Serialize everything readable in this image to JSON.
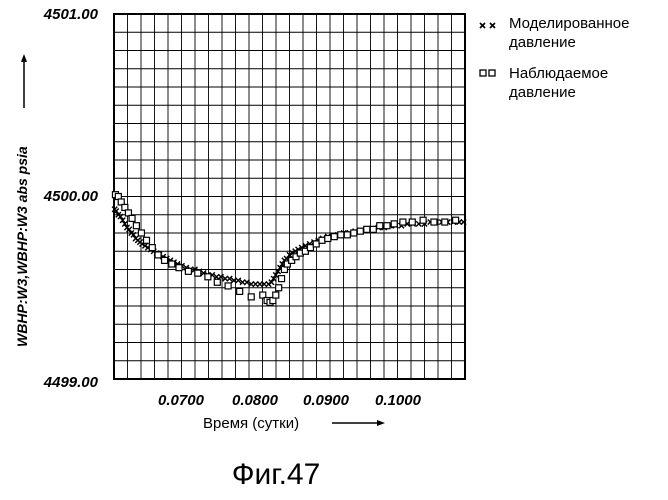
{
  "chart_data": {
    "type": "scatter",
    "ylabel": "WBHP:W3,WBHP:W3 abs psia",
    "xlabel": "Время (сутки)",
    "ylim": [
      4499.0,
      4501.0
    ],
    "xlim": [
      0.0612,
      0.1098
    ],
    "y_ticks": [
      "4499.00",
      "4500.00",
      "4501.00"
    ],
    "x_ticks": [
      "0.0700",
      "0.0800",
      "0.0900",
      "0.1000"
    ],
    "grid": true,
    "legend_position": "top-right, outside plot",
    "series": [
      {
        "name": "Моделированное давление",
        "marker": "x",
        "x": [
          0.0613,
          0.0615,
          0.0618,
          0.0621,
          0.0624,
          0.0627,
          0.063,
          0.0633,
          0.0636,
          0.0639,
          0.0642,
          0.0645,
          0.0648,
          0.0651,
          0.0655,
          0.0659,
          0.0663,
          0.0667,
          0.0671,
          0.0675,
          0.068,
          0.0685,
          0.069,
          0.0695,
          0.07,
          0.0706,
          0.0712,
          0.0718,
          0.0724,
          0.073,
          0.0736,
          0.0742,
          0.0748,
          0.0754,
          0.076,
          0.0766,
          0.0772,
          0.0778,
          0.0784,
          0.079,
          0.0796,
          0.0802,
          0.0808,
          0.0814,
          0.082,
          0.0826,
          0.083,
          0.0833,
          0.0836,
          0.0839,
          0.0842,
          0.0845,
          0.0848,
          0.0851,
          0.0855,
          0.0859,
          0.0863,
          0.0867,
          0.0872,
          0.0877,
          0.0883,
          0.0889,
          0.0895,
          0.0901,
          0.0908,
          0.0915,
          0.0922,
          0.093,
          0.0938,
          0.0946,
          0.0954,
          0.0962,
          0.097,
          0.0978,
          0.0986,
          0.0994,
          0.1002,
          0.101,
          0.1018,
          0.1026,
          0.1034,
          0.1042,
          0.105,
          0.1058,
          0.1066,
          0.1074,
          0.1082,
          0.109,
          0.1096
        ],
        "y": [
          4499.93,
          4499.92,
          4499.9,
          4499.89,
          4499.87,
          4499.85,
          4499.83,
          4499.82,
          4499.8,
          4499.79,
          4499.77,
          4499.76,
          4499.75,
          4499.74,
          4499.73,
          4499.72,
          4499.71,
          4499.7,
          4499.69,
          4499.68,
          4499.67,
          4499.66,
          4499.65,
          4499.64,
          4499.63,
          4499.62,
          4499.61,
          4499.6,
          4499.6,
          4499.59,
          4499.58,
          4499.57,
          4499.57,
          4499.56,
          4499.56,
          4499.55,
          4499.55,
          4499.54,
          4499.54,
          4499.53,
          4499.53,
          4499.52,
          4499.52,
          4499.52,
          4499.52,
          4499.52,
          4499.53,
          4499.55,
          4499.57,
          4499.59,
          4499.61,
          4499.63,
          4499.65,
          4499.66,
          4499.68,
          4499.69,
          4499.7,
          4499.71,
          4499.72,
          4499.73,
          4499.74,
          4499.75,
          4499.76,
          4499.77,
          4499.78,
          4499.78,
          4499.79,
          4499.8,
          4499.8,
          4499.81,
          4499.81,
          4499.82,
          4499.82,
          4499.83,
          4499.83,
          4499.84,
          4499.84,
          4499.84,
          4499.85,
          4499.85,
          4499.85,
          4499.85,
          4499.86,
          4499.86,
          4499.86,
          4499.86,
          4499.86,
          4499.86,
          4499.86
        ]
      },
      {
        "name": "Наблюдаемое давление",
        "marker": "square",
        "x": [
          0.0614,
          0.0618,
          0.0622,
          0.0627,
          0.0632,
          0.0637,
          0.0643,
          0.065,
          0.0657,
          0.0665,
          0.0673,
          0.0682,
          0.0692,
          0.0702,
          0.0715,
          0.0728,
          0.0742,
          0.0755,
          0.077,
          0.0786,
          0.0802,
          0.0818,
          0.0824,
          0.0828,
          0.0832,
          0.0836,
          0.084,
          0.0844,
          0.0848,
          0.0852,
          0.0858,
          0.0864,
          0.087,
          0.0877,
          0.0884,
          0.0892,
          0.09,
          0.0908,
          0.0917,
          0.0926,
          0.0935,
          0.0944,
          0.0953,
          0.0962,
          0.0971,
          0.098,
          0.099,
          0.1,
          0.1012,
          0.1025,
          0.104,
          0.1055,
          0.107,
          0.1085
        ],
        "y": [
          4500.01,
          4500.0,
          4499.97,
          4499.94,
          4499.91,
          4499.88,
          4499.84,
          4499.8,
          4499.76,
          4499.72,
          4499.68,
          4499.65,
          4499.63,
          4499.61,
          4499.59,
          4499.58,
          4499.56,
          4499.53,
          4499.51,
          4499.48,
          4499.45,
          4499.46,
          4499.43,
          4499.42,
          4499.43,
          4499.46,
          4499.5,
          4499.55,
          4499.6,
          4499.63,
          4499.65,
          4499.67,
          4499.69,
          4499.7,
          4499.72,
          4499.74,
          4499.76,
          4499.77,
          4499.78,
          4499.79,
          4499.79,
          4499.8,
          4499.81,
          4499.82,
          4499.82,
          4499.84,
          4499.84,
          4499.85,
          4499.86,
          4499.86,
          4499.87,
          4499.86,
          4499.86,
          4499.87
        ]
      }
    ]
  },
  "figure": {
    "caption": "Фиг.47"
  },
  "legend": {
    "items": [
      {
        "symbol": "✕✕",
        "line1": "Моделированное",
        "line2": "давление"
      },
      {
        "symbol": "□□",
        "line1": "Наблюдаемое",
        "line2": "давление"
      }
    ]
  }
}
